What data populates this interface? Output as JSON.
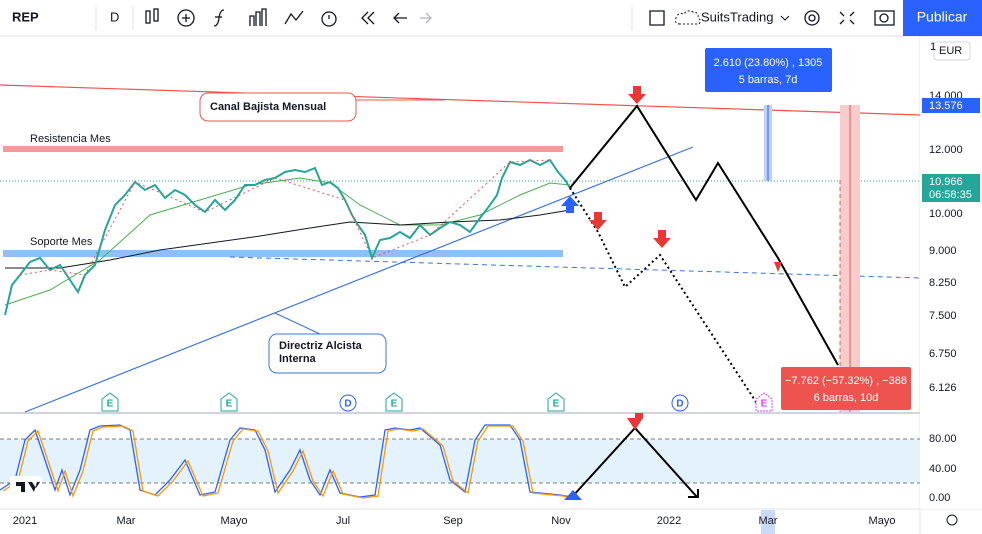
{
  "toolbar": {
    "symbol": "REP",
    "interval": "D",
    "user": "SuitsTrading",
    "publish": "Publicar"
  },
  "price_axis": {
    "top_cut": "1",
    "currency": "EUR",
    "labels": [
      "14.000",
      "12.000",
      "10.000",
      "9.000",
      "8.250",
      "7.500",
      "6.750",
      "6.126"
    ],
    "current_price": "13.576",
    "last_price": "10.966",
    "countdown": "06:58:35"
  },
  "oscillator_axis": {
    "labels": [
      "80.00",
      "40.00",
      "0.00"
    ]
  },
  "time_axis": {
    "labels": [
      "2021",
      "Mar",
      "Mayo",
      "Jul",
      "Sep",
      "Nov",
      "2022",
      "Mar",
      "Mayo"
    ]
  },
  "annotations": {
    "channel": "Canal Bajista Mensual",
    "resistance": "Resistencia Mes",
    "support": "Soporte Mes",
    "trendline": [
      "Directriz Alcista",
      "Interna"
    ]
  },
  "measures": [
    {
      "line1": "2.610 (23.80%) , 1305",
      "line2": "5 barras, 7d"
    },
    {
      "line1": "−7.762 (−57.32%) , −388",
      "line2": "6 barras, 10d"
    }
  ],
  "events": [
    "E",
    "E",
    "D",
    "E",
    "E",
    "D",
    "E"
  ]
}
